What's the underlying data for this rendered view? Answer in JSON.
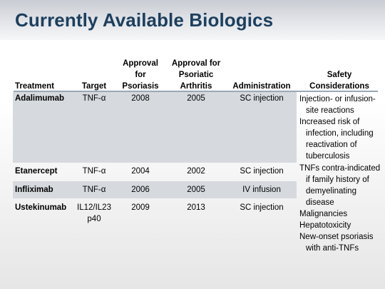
{
  "slide": {
    "title": "Currently Available Biologics"
  },
  "table": {
    "headers": {
      "treatment": "Treatment",
      "target": "Target",
      "approval_psoriasis": [
        "Approval",
        "for",
        "Psoriasis"
      ],
      "approval_psa": [
        "Approval for",
        "Psoriatic",
        "Arthritis"
      ],
      "administration": "Administration",
      "safety": [
        "Safety",
        "Considerations"
      ]
    },
    "rows": [
      {
        "treatment": "Adalimumab",
        "target": [
          "TNF-α"
        ],
        "approval_psoriasis": "2008",
        "approval_psa": "2005",
        "administration": "SC injection"
      },
      {
        "treatment": "Etanercept",
        "target": [
          "TNF-α"
        ],
        "approval_psoriasis": "2004",
        "approval_psa": "2002",
        "administration": "SC injection"
      },
      {
        "treatment": "Infliximab",
        "target": [
          "TNF-α"
        ],
        "approval_psoriasis": "2006",
        "approval_psa": "2005",
        "administration": "IV infusion"
      },
      {
        "treatment": "Ustekinumab",
        "target": [
          "IL12/IL23",
          "p40"
        ],
        "approval_psoriasis": "2009",
        "approval_psa": "2013",
        "administration": "SC injection"
      }
    ],
    "safety_considerations": [
      "Injection- or infusion-site reactions",
      "Increased risk of infection, including reactivation of tuberculosis",
      "TNFs contra-indicated if family history of demyelinating disease",
      "Malignancies",
      "Hepatotoxicity",
      "New-onset psoriasis with anti-TNFs"
    ]
  }
}
